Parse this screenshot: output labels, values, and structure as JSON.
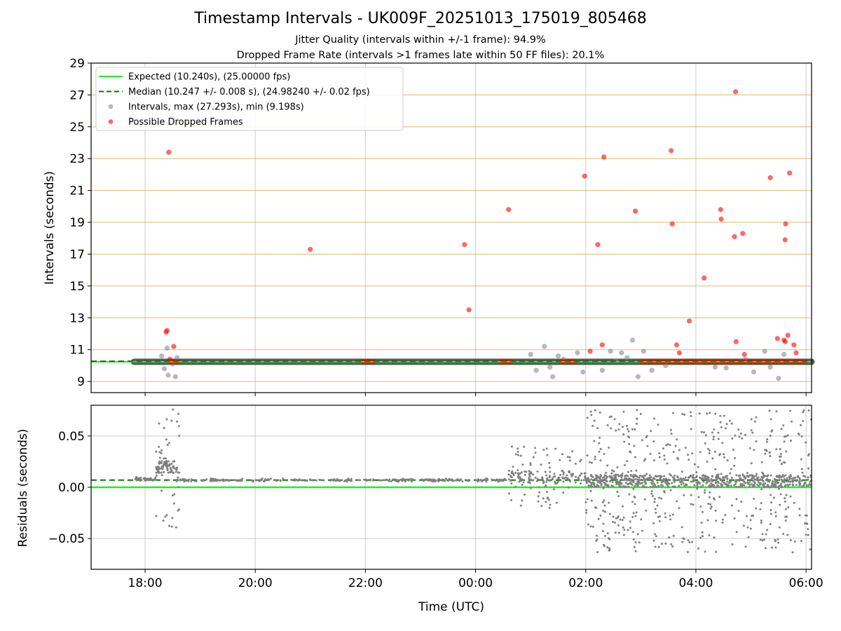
{
  "title": "Timestamp Intervals - UK009F_20251013_175019_805468",
  "subtitle_1": "Jitter Quality (intervals within +/-1 frame): 94.9%",
  "subtitle_2": "Dropped Frame Rate (intervals >1 frames late within 50 FF files): 20.1%",
  "colors": {
    "expected": "#22ee22",
    "median": "#007a00",
    "intervals": "#888888",
    "dropped": "#ff0000",
    "gold_grid": "#c9a227",
    "grid": "#cccccc",
    "residuals": "#808080"
  },
  "chart_data": [
    {
      "type": "scatter",
      "xlabel": "",
      "ylabel": "Intervals (seconds)",
      "xlim_hours": [
        -0.98,
        12.1
      ],
      "ylim": [
        8.3,
        29
      ],
      "yticks": [
        9,
        11,
        13,
        15,
        17,
        19,
        21,
        23,
        25,
        27,
        29
      ],
      "ytick_labels": [
        "9",
        "11",
        "13",
        "15",
        "17",
        "19",
        "21",
        "23",
        "25",
        "27",
        "29"
      ],
      "horizontal_gridlines": [
        9,
        11,
        13,
        15,
        17,
        19,
        21,
        23,
        25,
        27
      ],
      "legend_position": "upper-left",
      "legend": [
        {
          "label": "Expected (10.240s), (25.00000 fps)",
          "style": "solid-line",
          "color": "#22ee22"
        },
        {
          "label": "Median (10.247 +/- 0.008 s), (24.98240 +/- 0.02 fps)",
          "style": "dashed-line",
          "color": "#007a00"
        },
        {
          "label": "Intervals, max (27.293s), min (9.198s)",
          "style": "marker",
          "color": "#888888"
        },
        {
          "label": "Possible Dropped Frames",
          "style": "marker",
          "color": "#ff0000"
        }
      ],
      "expected_value": 10.24,
      "median_value": 10.247,
      "series": [
        {
          "name": "Intervals, max (27.293s), min (9.198s)",
          "baseline": {
            "x_range": [
              -0.2,
              12.1
            ],
            "y": 10.24
          },
          "outliers": [
            [
              0.3,
              10.6
            ],
            [
              0.35,
              9.8
            ],
            [
              0.4,
              11.1
            ],
            [
              0.42,
              9.4
            ],
            [
              0.5,
              10.1
            ],
            [
              0.55,
              9.3
            ],
            [
              0.58,
              10.5
            ],
            [
              7.0,
              10.7
            ],
            [
              7.1,
              9.7
            ],
            [
              7.25,
              11.2
            ],
            [
              7.35,
              9.9
            ],
            [
              7.4,
              9.3
            ],
            [
              7.5,
              10.6
            ],
            [
              7.6,
              10.4
            ],
            [
              7.85,
              10.8
            ],
            [
              7.95,
              9.6
            ],
            [
              8.3,
              9.7
            ],
            [
              8.45,
              10.9
            ],
            [
              8.55,
              10.3
            ],
            [
              8.65,
              10.8
            ],
            [
              8.75,
              10.5
            ],
            [
              8.85,
              11.6
            ],
            [
              8.95,
              9.3
            ],
            [
              9.05,
              10.9
            ],
            [
              9.2,
              9.7
            ],
            [
              9.45,
              10.0
            ],
            [
              10.0,
              10.2
            ],
            [
              10.35,
              9.9
            ],
            [
              10.55,
              9.85
            ],
            [
              10.9,
              10.4
            ],
            [
              11.05,
              9.6
            ],
            [
              11.25,
              10.9
            ],
            [
              11.35,
              9.9
            ],
            [
              11.5,
              9.2
            ],
            [
              11.6,
              10.7
            ],
            [
              11.75,
              10.3
            ]
          ]
        },
        {
          "name": "Possible Dropped Frames",
          "clusters": [
            [
              0.45,
              0.6
            ],
            [
              3.95,
              4.15
            ],
            [
              6.45,
              6.65
            ],
            [
              7.55,
              7.8
            ],
            [
              9.0,
              12.0
            ]
          ],
          "clusters_y": 10.24,
          "points": [
            [
              0.43,
              23.4
            ],
            [
              0.4,
              12.2
            ],
            [
              0.38,
              12.1
            ],
            [
              0.52,
              11.2
            ],
            [
              0.45,
              10.4
            ],
            [
              3.0,
              17.3
            ],
            [
              5.8,
              17.6
            ],
            [
              5.88,
              13.5
            ],
            [
              6.6,
              19.8
            ],
            [
              7.98,
              21.9
            ],
            [
              8.08,
              10.9
            ],
            [
              8.22,
              17.6
            ],
            [
              8.3,
              11.3
            ],
            [
              8.33,
              23.1
            ],
            [
              8.9,
              19.7
            ],
            [
              9.55,
              23.5
            ],
            [
              9.57,
              18.9
            ],
            [
              9.65,
              11.3
            ],
            [
              9.7,
              10.8
            ],
            [
              9.88,
              12.8
            ],
            [
              10.15,
              15.5
            ],
            [
              10.45,
              19.8
            ],
            [
              10.46,
              19.2
            ],
            [
              10.7,
              18.1
            ],
            [
              10.72,
              27.2
            ],
            [
              10.73,
              11.5
            ],
            [
              10.85,
              18.3
            ],
            [
              10.88,
              10.7
            ],
            [
              11.35,
              21.8
            ],
            [
              11.48,
              11.7
            ],
            [
              11.6,
              11.6
            ],
            [
              11.62,
              11.5
            ],
            [
              11.62,
              17.9
            ],
            [
              11.63,
              18.9
            ],
            [
              11.67,
              11.9
            ],
            [
              11.7,
              22.1
            ],
            [
              11.78,
              11.3
            ],
            [
              11.82,
              10.8
            ]
          ]
        }
      ]
    },
    {
      "type": "scatter",
      "xlabel": "Time (UTC)",
      "ylabel": "Residuals (seconds)",
      "xlim_hours": [
        -0.98,
        12.1
      ],
      "ylim": [
        -0.08,
        0.08
      ],
      "yticks": [
        0.05,
        0.0,
        -0.05
      ],
      "ytick_labels": [
        "0.05",
        "0.00",
        "−0.05"
      ],
      "xticks_hours": [
        0,
        2,
        4,
        6,
        8,
        10,
        12
      ],
      "xtick_labels": [
        "18:00",
        "20:00",
        "22:00",
        "00:00",
        "02:00",
        "04:00",
        "06:00"
      ],
      "expected_value": 0.0,
      "median_value": 0.007,
      "series": [
        {
          "name": "Residuals",
          "segments": [
            {
              "x_range": [
                -0.18,
                0.2
              ],
              "center": 0.008,
              "spread": 0.002,
              "count": 40
            },
            {
              "x_range": [
                0.2,
                0.62
              ],
              "center": 0.02,
              "spread": 0.06,
              "count": 120
            },
            {
              "x_range": [
                0.62,
                6.6
              ],
              "center": 0.007,
              "spread": 0.0015,
              "count": 260
            },
            {
              "x_range": [
                6.6,
                8.0
              ],
              "center": 0.01,
              "spread": 0.03,
              "count": 180
            },
            {
              "x_range": [
                8.0,
                12.1
              ],
              "center": 0.006,
              "spread": 0.07,
              "count": 1100
            }
          ]
        }
      ]
    }
  ]
}
